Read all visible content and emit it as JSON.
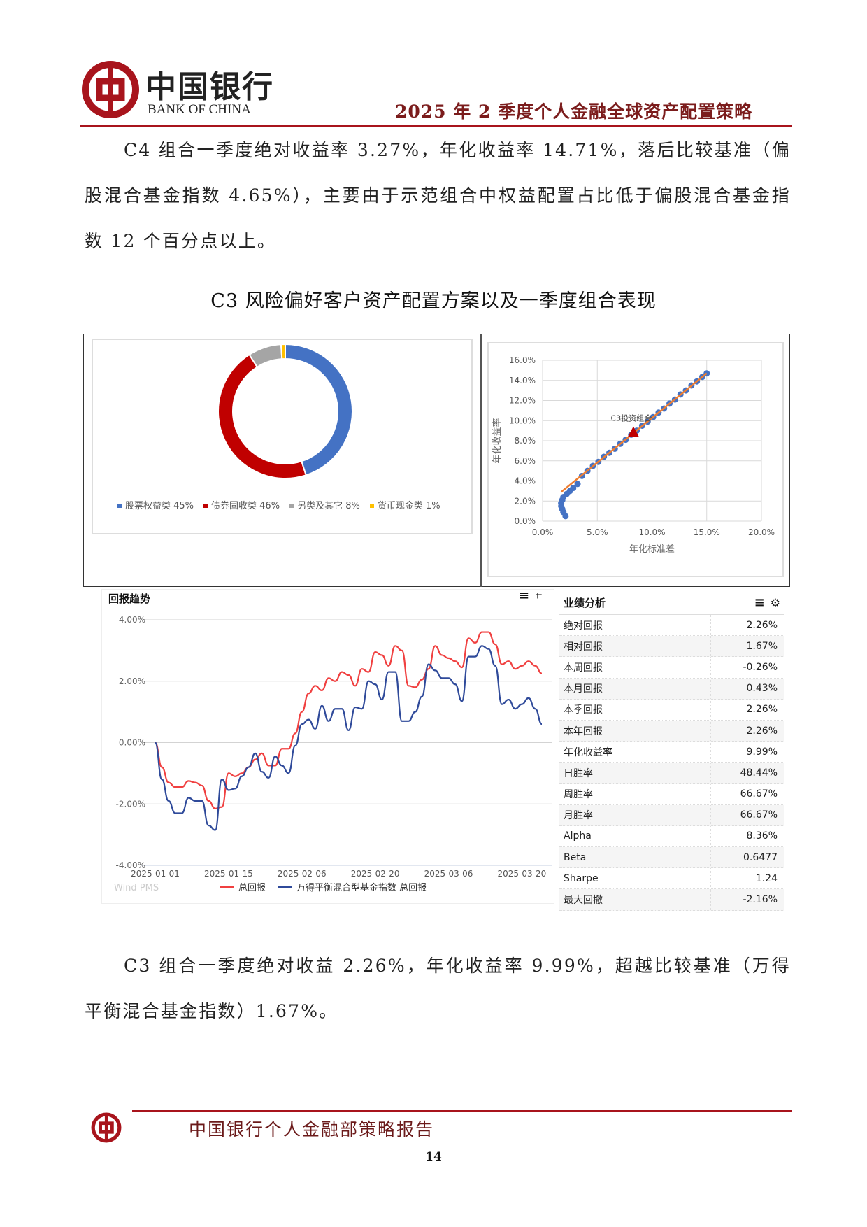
{
  "header": {
    "logo_cn": "中国银行",
    "logo_en": "BANK OF CHINA",
    "title": "2025 年 2 季度个人金融全球资产配置策略",
    "brand_color": "#a8141c"
  },
  "paragraph1": "C4 组合一季度绝对收益率 3.27%，年化收益率 14.71%，落后比较基准（偏股混合基金指数 4.65%），主要由于示范组合中权益配置占比低于偏股混合基金指数 12 个百分点以上。",
  "caption": "C3 风险偏好客户资产配置方案以及一季度组合表现",
  "chart_data": [
    {
      "type": "pie",
      "subtype": "donut",
      "categories": [
        "股票权益类",
        "债券固收类",
        "另类及其它",
        "货币现金类"
      ],
      "values": [
        45,
        46,
        8,
        1
      ],
      "colors": [
        "#4472c4",
        "#c00000",
        "#a5a5a5",
        "#ffc000"
      ],
      "legend_labels": [
        "股票权益类 45%",
        "债券固收类 46%",
        "另类及其它 8%",
        "货币现金类 1%"
      ],
      "legend": "bottom"
    },
    {
      "type": "scatter",
      "xlabel": "年化标准差",
      "ylabel": "年化收益率",
      "xlim": [
        0,
        20
      ],
      "ylim": [
        0,
        16
      ],
      "x_ticks": [
        "0.0%",
        "5.0%",
        "10.0%",
        "15.0%",
        "20.0%"
      ],
      "y_ticks": [
        "0.0%",
        "2.0%",
        "4.0%",
        "6.0%",
        "8.0%",
        "10.0%",
        "12.0%",
        "14.0%",
        "16.0%"
      ],
      "grid": true,
      "frontier_points": [
        [
          2.1,
          0.5
        ],
        [
          1.9,
          0.9
        ],
        [
          1.8,
          1.2
        ],
        [
          1.7,
          1.5
        ],
        [
          1.7,
          1.8
        ],
        [
          1.8,
          2.1
        ],
        [
          1.9,
          2.4
        ],
        [
          2.2,
          2.7
        ],
        [
          2.5,
          3.0
        ],
        [
          2.8,
          3.3
        ],
        [
          3.2,
          3.7
        ],
        [
          3.6,
          4.5
        ],
        [
          4.1,
          5.0
        ],
        [
          4.6,
          5.5
        ],
        [
          5.1,
          5.9
        ],
        [
          5.6,
          6.4
        ],
        [
          6.1,
          6.8
        ],
        [
          6.6,
          7.2
        ],
        [
          7.1,
          7.7
        ],
        [
          7.6,
          8.1
        ],
        [
          8.1,
          8.6
        ],
        [
          8.6,
          9.0
        ],
        [
          9.1,
          9.5
        ],
        [
          9.6,
          9.9
        ],
        [
          10.1,
          10.35
        ],
        [
          10.6,
          10.8
        ],
        [
          11.1,
          11.2
        ],
        [
          11.6,
          11.7
        ],
        [
          12.1,
          12.1
        ],
        [
          12.6,
          12.6
        ],
        [
          13.1,
          13.0
        ],
        [
          13.6,
          13.5
        ],
        [
          14.1,
          13.9
        ],
        [
          14.6,
          14.35
        ],
        [
          15.0,
          14.7
        ]
      ],
      "trend_line": [
        [
          1.7,
          2.9
        ],
        [
          15.0,
          14.7
        ]
      ],
      "portfolio": {
        "label": "C3投资组合",
        "x": 8.3,
        "y": 8.8
      },
      "colors": {
        "points": "#4472c4",
        "line": "#ed7d31",
        "portfolio": "#c00000"
      }
    },
    {
      "type": "line",
      "title": "回报趋势",
      "ylim": [
        -4,
        4
      ],
      "y_ticks": [
        "-4.00%",
        "-2.00%",
        "0.00%",
        "2.00%",
        "4.00%"
      ],
      "x_ticks": [
        "2025-01-01",
        "2025-01-15",
        "2025-02-06",
        "2025-02-20",
        "2025-03-06",
        "2025-03-20"
      ],
      "grid": true,
      "legend": "bottom",
      "source": "Wind PMS",
      "series": [
        {
          "name": "总回报",
          "color": "#f04040",
          "values": [
            0,
            -0.8,
            -1.3,
            -1.45,
            -1.45,
            -1.25,
            -1.3,
            -1.4,
            -1.9,
            -2.15,
            -2.1,
            -1.0,
            -1.1,
            -1.0,
            -0.8,
            -0.55,
            -0.35,
            -0.75,
            -0.75,
            -0.2,
            -0.2,
            0.3,
            1.0,
            1.6,
            1.85,
            1.7,
            2.1,
            2.0,
            2.3,
            2.2,
            1.85,
            2.4,
            2.3,
            2.95,
            2.85,
            2.5,
            3.15,
            3.0,
            1.85,
            1.8,
            2.05,
            2.4,
            3.15,
            2.85,
            2.75,
            2.65,
            2.45,
            3.4,
            3.25,
            3.6,
            3.6,
            3.2,
            2.55,
            2.65,
            2.4,
            2.5,
            2.65,
            2.5,
            2.25
          ]
        },
        {
          "name": "万得平衡混合型基金指数 总回报",
          "color": "#2f4a9a",
          "values": [
            0,
            -1.2,
            -1.9,
            -2.3,
            -2.3,
            -1.8,
            -1.9,
            -1.9,
            -2.7,
            -2.85,
            -1.2,
            -1.55,
            -1.5,
            -1.1,
            -0.8,
            -0.35,
            -0.95,
            -1.15,
            -0.45,
            -0.75,
            -1.0,
            -0.1,
            0.6,
            0.75,
            0.45,
            1.2,
            0.7,
            1.1,
            1.1,
            0.4,
            1.15,
            1.1,
            2.0,
            1.9,
            1.4,
            2.3,
            2.3,
            0.7,
            0.7,
            1.0,
            1.5,
            2.55,
            2.35,
            2.1,
            2.1,
            1.9,
            1.35,
            2.8,
            2.8,
            3.15,
            3.05,
            2.5,
            1.25,
            1.4,
            1.1,
            1.25,
            1.45,
            1.1,
            0.6
          ]
        }
      ]
    }
  ],
  "chart_icons": {
    "menu": "menu-icon",
    "crop": "crop-icon",
    "gear": "gear-icon"
  },
  "performance": {
    "title": "业绩分析",
    "rows": [
      {
        "label": "绝对回报",
        "value": "2.26%"
      },
      {
        "label": "相对回报",
        "value": "1.67%"
      },
      {
        "label": "本周回报",
        "value": "-0.26%"
      },
      {
        "label": "本月回报",
        "value": "0.43%"
      },
      {
        "label": "本季回报",
        "value": "2.26%"
      },
      {
        "label": "本年回报",
        "value": "2.26%"
      },
      {
        "label": "年化收益率",
        "value": "9.99%"
      },
      {
        "label": "日胜率",
        "value": "48.44%"
      },
      {
        "label": "周胜率",
        "value": "66.67%"
      },
      {
        "label": "月胜率",
        "value": "66.67%"
      },
      {
        "label": "Alpha",
        "value": "8.36%"
      },
      {
        "label": "Beta",
        "value": "0.6477"
      },
      {
        "label": "Sharpe",
        "value": "1.24"
      },
      {
        "label": "最大回撤",
        "value": "-2.16%"
      }
    ]
  },
  "paragraph2": "C3 组合一季度绝对收益 2.26%，年化收益率 9.99%，超越比较基准（万得平衡混合基金指数）1.67%。",
  "footer": {
    "text": "中国银行个人金融部策略报告",
    "page": "14"
  }
}
